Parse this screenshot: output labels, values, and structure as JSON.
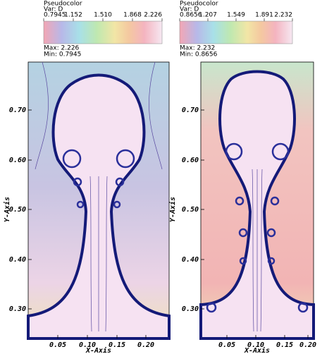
{
  "panels": [
    {
      "legend": {
        "title": "Pseudocolor",
        "var": "Var: D",
        "ticks": [
          "0.7945",
          "1.152",
          "1.510",
          "1.868",
          "2.226"
        ],
        "max": "Max: 2.226",
        "min": "Min: 0.7945"
      },
      "y_axis": {
        "title": "Y-Axis",
        "ticks": [
          "0.70",
          "0.60",
          "0.50",
          "0.40",
          "0.30"
        ]
      },
      "x_axis": {
        "title": "X-Axis",
        "ticks": [
          "0.05",
          "0.10",
          "0.15",
          "0.20"
        ]
      }
    },
    {
      "legend": {
        "title": "Pseudocolor",
        "var": "Var: D",
        "ticks": [
          "0.8656",
          "1.207",
          "1.549",
          "1.891",
          "2.232"
        ],
        "max": "Max: 2.232",
        "min": "Min: 0.8656"
      },
      "y_axis": {
        "title": "Y-Axis",
        "ticks": [
          "0.70",
          "0.60",
          "0.50",
          "0.40",
          "0.30"
        ]
      },
      "x_axis": {
        "title": "X-Axis",
        "ticks": [
          "0.05",
          "0.10",
          "0.15",
          "0.20"
        ]
      }
    }
  ]
}
